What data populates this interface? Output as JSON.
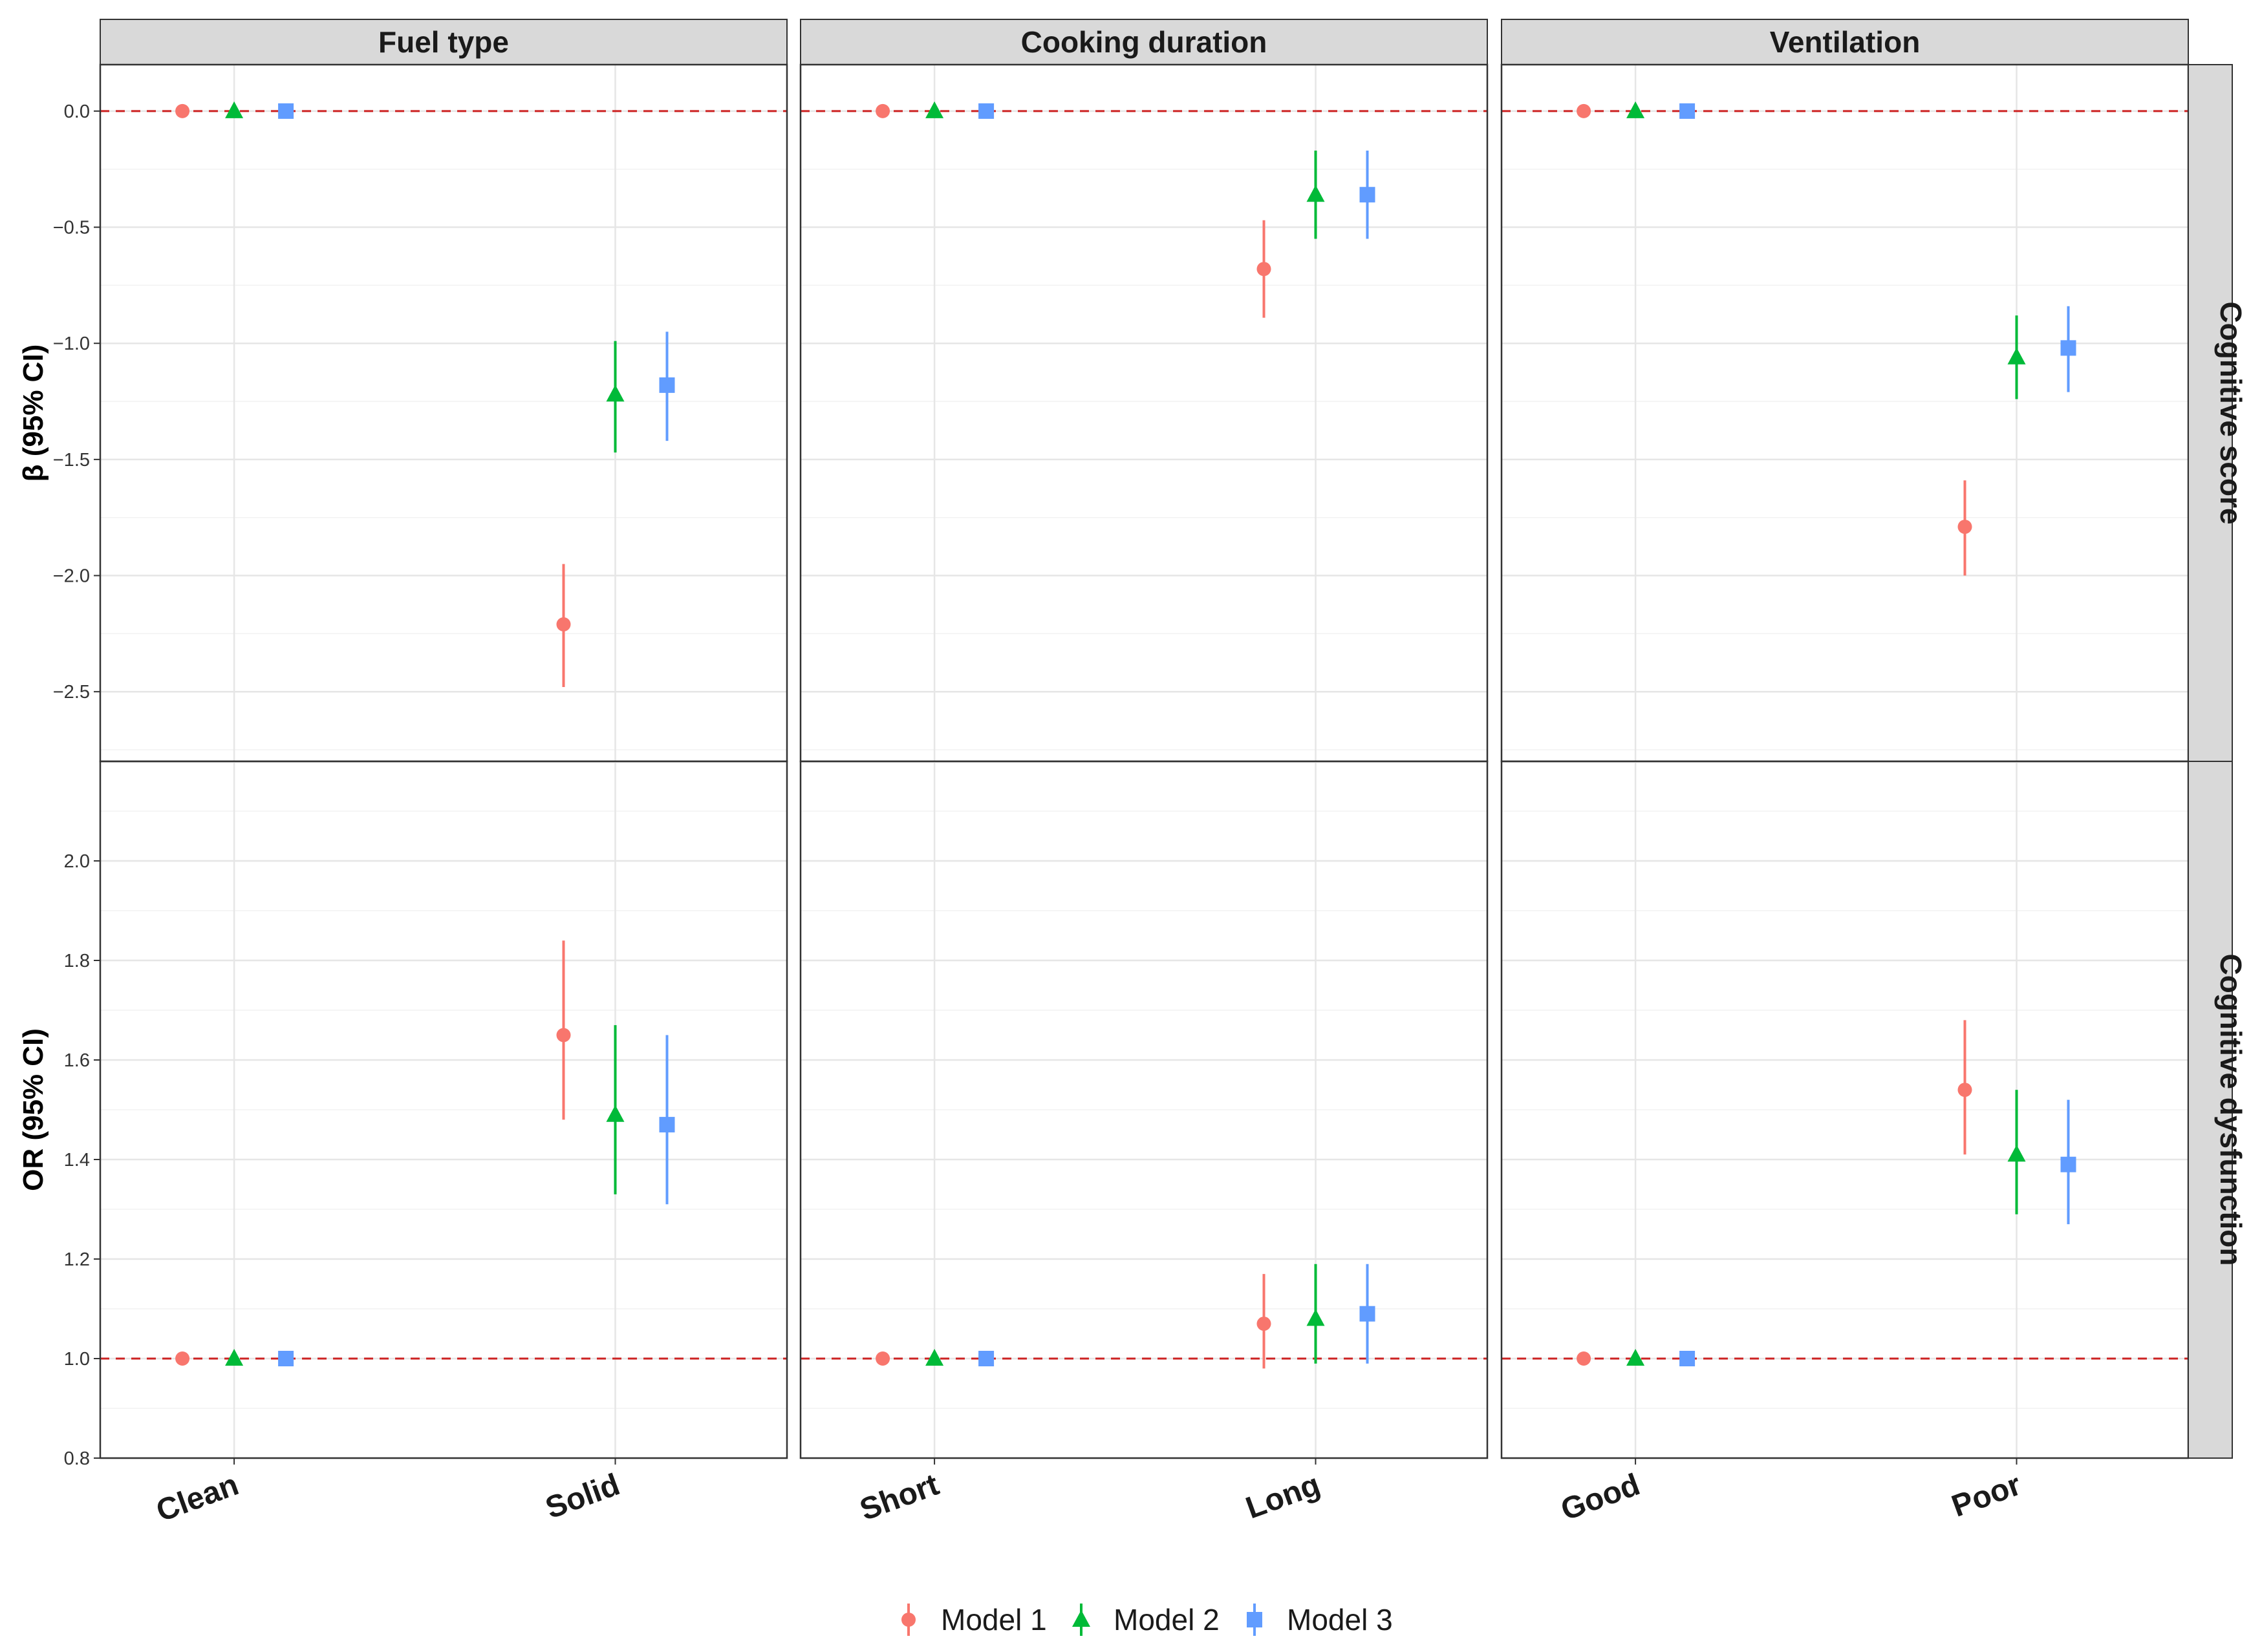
{
  "chart_data": {
    "type": "scatter",
    "facet_columns": [
      "Fuel type",
      "Cooking duration",
      "Ventilation"
    ],
    "facet_rows": [
      "Cognitive score",
      "Cognitive dysfunction"
    ],
    "y_labels": [
      "β (95% CI)",
      "OR (95% CI)"
    ],
    "categories": [
      [
        "Clean",
        "Solid"
      ],
      [
        "Short",
        "Long"
      ],
      [
        "Good",
        "Poor"
      ]
    ],
    "rows": [
      {
        "ylim": [
          -2.8,
          0.2
        ],
        "ticks": [
          0.0,
          -0.5,
          -1.0,
          -1.5,
          -2.0,
          -2.5
        ],
        "tick_labels": [
          "0.0",
          "−0.5",
          "−1.0",
          "−1.5",
          "−2.0",
          "−2.5"
        ],
        "reference_line": 0,
        "panels": [
          {
            "reference": [
              0,
              0,
              0
            ],
            "estimate": [
              -2.21,
              -1.22,
              -1.18
            ],
            "lower": [
              -2.48,
              -1.47,
              -1.42
            ],
            "upper": [
              -1.95,
              -0.99,
              -0.95
            ]
          },
          {
            "reference": [
              0,
              0,
              0
            ],
            "estimate": [
              -0.68,
              -0.36,
              -0.36
            ],
            "lower": [
              -0.89,
              -0.55,
              -0.55
            ],
            "upper": [
              -0.47,
              -0.17,
              -0.17
            ]
          },
          {
            "reference": [
              0,
              0,
              0
            ],
            "estimate": [
              -1.79,
              -1.06,
              -1.02
            ],
            "lower": [
              -2.0,
              -1.24,
              -1.21
            ],
            "upper": [
              -1.59,
              -0.88,
              -0.84
            ]
          }
        ]
      },
      {
        "ylim": [
          0.8,
          2.2
        ],
        "ticks": [
          0.8,
          1.0,
          1.2,
          1.4,
          1.6,
          1.8,
          2.0
        ],
        "tick_labels": [
          "0.8",
          "1.0",
          "1.2",
          "1.4",
          "1.6",
          "1.8",
          "2.0"
        ],
        "reference_line": 1,
        "panels": [
          {
            "reference": [
              1,
              1,
              1
            ],
            "estimate": [
              1.65,
              1.49,
              1.47
            ],
            "lower": [
              1.48,
              1.33,
              1.31
            ],
            "upper": [
              1.84,
              1.67,
              1.65
            ]
          },
          {
            "reference": [
              1,
              1,
              1
            ],
            "estimate": [
              1.07,
              1.08,
              1.09
            ],
            "lower": [
              0.98,
              0.99,
              0.99
            ],
            "upper": [
              1.17,
              1.19,
              1.19
            ]
          },
          {
            "reference": [
              1,
              1,
              1
            ],
            "estimate": [
              1.54,
              1.41,
              1.39
            ],
            "lower": [
              1.41,
              1.29,
              1.27
            ],
            "upper": [
              1.68,
              1.54,
              1.52
            ]
          }
        ]
      }
    ],
    "series": [
      {
        "name": "Model 1",
        "color": "#F8766D",
        "shape": "circle"
      },
      {
        "name": "Model 2",
        "color": "#00BA38",
        "shape": "triangle"
      },
      {
        "name": "Model 3",
        "color": "#619CFF",
        "shape": "square"
      }
    ],
    "reference_line_color": "#CC2222",
    "grid": true,
    "legend_position": "bottom"
  }
}
